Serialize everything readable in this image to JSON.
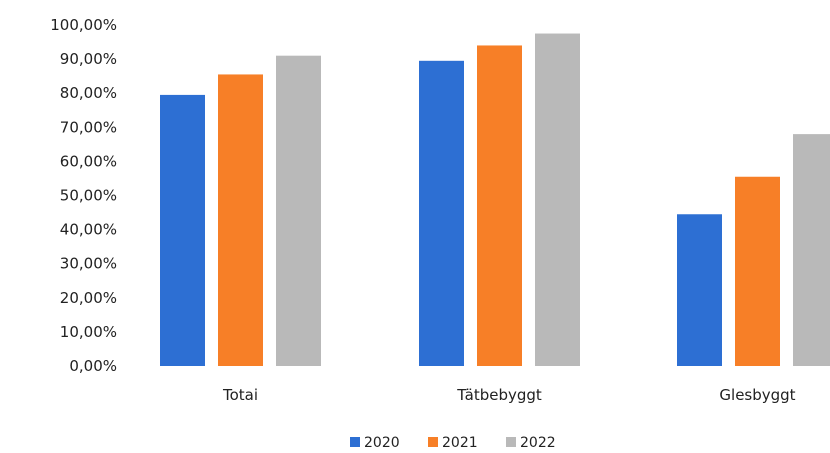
{
  "chart_data": {
    "type": "bar",
    "title": "",
    "xlabel": "",
    "ylabel": "",
    "categories": [
      "Totai",
      "Tätbebyggt",
      "Glesbyggt"
    ],
    "series": [
      {
        "name": "2020",
        "color": "#2D6FD3",
        "values": [
          79.5,
          89.5,
          44.5
        ]
      },
      {
        "name": "2021",
        "color": "#F77F27",
        "values": [
          85.5,
          94.0,
          55.5
        ]
      },
      {
        "name": "2022",
        "color": "#B9B9B9",
        "values": [
          91.0,
          97.5,
          68.0
        ]
      }
    ],
    "ylim": [
      0,
      100
    ],
    "yticks": [
      "0,00%",
      "10,00%",
      "20,00%",
      "30,00%",
      "40,00%",
      "50,00%",
      "60,00%",
      "70,00%",
      "80,00%",
      "90,00%",
      "100,00%"
    ],
    "grid": false,
    "legend_position": "bottom-center"
  }
}
